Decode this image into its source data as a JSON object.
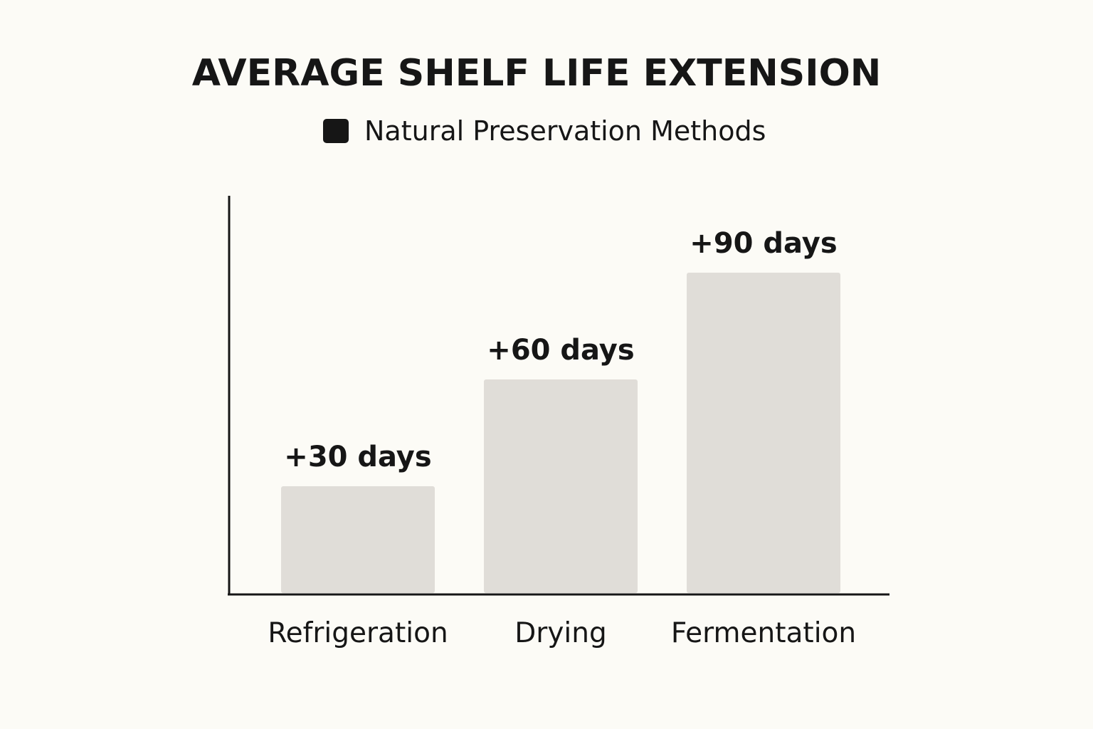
{
  "chart_data": {
    "type": "bar",
    "title": "AVERAGE SHELF LIFE EXTENSION",
    "legend": {
      "position": "top-center",
      "entries": [
        {
          "label": "Natural Preservation Methods",
          "color": "#161616"
        }
      ]
    },
    "categories": [
      "Refrigeration",
      "Drying",
      "Fermentation"
    ],
    "series": [
      {
        "name": "Natural Preservation Methods",
        "values": [
          30,
          60,
          90
        ],
        "data_labels": [
          "+30 days",
          "+60 days",
          "+90 days"
        ]
      }
    ],
    "bar_color": "#e0ddd8",
    "axis_color": "#161616",
    "ylim": [
      0,
      105
    ],
    "grid": false,
    "xlabel": "",
    "ylabel": ""
  }
}
